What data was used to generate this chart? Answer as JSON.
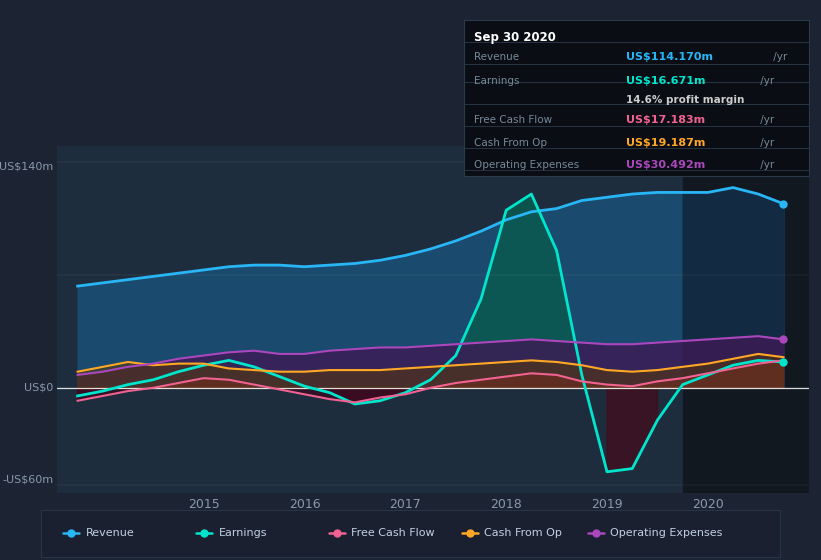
{
  "background_color": "#1c2333",
  "plot_area_color": "#1e2d3d",
  "dark_right_color": "#151e2a",
  "ylim": [
    -65,
    150
  ],
  "xlim_start": 2013.55,
  "xlim_end": 2021.0,
  "x_ticks": [
    2015,
    2016,
    2017,
    2018,
    2019,
    2020
  ],
  "y_label_top": "US$140m",
  "y_label_zero": "US$0",
  "y_label_bottom": "-US$60m",
  "y_zero": 0,
  "legend_items": [
    {
      "label": "Revenue",
      "color": "#29b6f6"
    },
    {
      "label": "Earnings",
      "color": "#00e5cc"
    },
    {
      "label": "Free Cash Flow",
      "color": "#f06292"
    },
    {
      "label": "Cash From Op",
      "color": "#ffa726"
    },
    {
      "label": "Operating Expenses",
      "color": "#ab47bc"
    }
  ],
  "info_box": {
    "title": "Sep 30 2020",
    "rows": [
      {
        "label": "Revenue",
        "value": "US$114.170m",
        "value_color": "#29b6f6",
        "suffix": " /yr"
      },
      {
        "label": "Earnings",
        "value": "US$16.671m",
        "value_color": "#00e5cc",
        "suffix": " /yr"
      },
      {
        "label": "",
        "value": "14.6% profit margin",
        "value_color": "#cccccc",
        "suffix": ""
      },
      {
        "label": "Free Cash Flow",
        "value": "US$17.183m",
        "value_color": "#f06292",
        "suffix": " /yr"
      },
      {
        "label": "Cash From Op",
        "value": "US$19.187m",
        "value_color": "#ffa726",
        "suffix": " /yr"
      },
      {
        "label": "Operating Expenses",
        "value": "US$30.492m",
        "value_color": "#ab47bc",
        "suffix": " /yr"
      }
    ]
  },
  "revenue_x": [
    2013.75,
    2014.0,
    2014.25,
    2014.5,
    2014.75,
    2015.0,
    2015.25,
    2015.5,
    2015.75,
    2016.0,
    2016.25,
    2016.5,
    2016.75,
    2017.0,
    2017.25,
    2017.5,
    2017.75,
    2018.0,
    2018.25,
    2018.5,
    2018.75,
    2019.0,
    2019.25,
    2019.5,
    2019.75,
    2020.0,
    2020.25,
    2020.5,
    2020.75
  ],
  "revenue_y": [
    63,
    65,
    67,
    69,
    71,
    73,
    75,
    76,
    76,
    75,
    76,
    77,
    79,
    82,
    86,
    91,
    97,
    104,
    109,
    111,
    116,
    118,
    120,
    121,
    121,
    121,
    124,
    120,
    114
  ],
  "earnings_x": [
    2013.75,
    2014.0,
    2014.25,
    2014.5,
    2014.75,
    2015.0,
    2015.25,
    2015.5,
    2015.75,
    2016.0,
    2016.25,
    2016.5,
    2016.75,
    2017.0,
    2017.25,
    2017.5,
    2017.75,
    2018.0,
    2018.25,
    2018.5,
    2018.75,
    2019.0,
    2019.25,
    2019.5,
    2019.75,
    2020.0,
    2020.25,
    2020.5,
    2020.75
  ],
  "earnings_y": [
    -5,
    -2,
    2,
    5,
    10,
    14,
    17,
    13,
    7,
    1,
    -3,
    -10,
    -8,
    -3,
    5,
    20,
    55,
    110,
    120,
    85,
    8,
    -52,
    -50,
    -20,
    2,
    8,
    14,
    17,
    16
  ],
  "fcf_x": [
    2013.75,
    2014.0,
    2014.25,
    2014.5,
    2014.75,
    2015.0,
    2015.25,
    2015.5,
    2015.75,
    2016.0,
    2016.25,
    2016.5,
    2016.75,
    2017.0,
    2017.25,
    2017.5,
    2017.75,
    2018.0,
    2018.25,
    2018.5,
    2018.75,
    2019.0,
    2019.25,
    2019.5,
    2019.75,
    2020.0,
    2020.25,
    2020.5,
    2020.75
  ],
  "fcf_y": [
    -8,
    -5,
    -2,
    0,
    3,
    6,
    5,
    2,
    -1,
    -4,
    -7,
    -9,
    -6,
    -4,
    0,
    3,
    5,
    7,
    9,
    8,
    4,
    2,
    1,
    4,
    6,
    9,
    12,
    15,
    17
  ],
  "cfo_x": [
    2013.75,
    2014.0,
    2014.25,
    2014.5,
    2014.75,
    2015.0,
    2015.25,
    2015.5,
    2015.75,
    2016.0,
    2016.25,
    2016.5,
    2016.75,
    2017.0,
    2017.25,
    2017.5,
    2017.75,
    2018.0,
    2018.25,
    2018.5,
    2018.75,
    2019.0,
    2019.25,
    2019.5,
    2019.75,
    2020.0,
    2020.25,
    2020.5,
    2020.75
  ],
  "cfo_y": [
    10,
    13,
    16,
    14,
    15,
    15,
    12,
    11,
    10,
    10,
    11,
    11,
    11,
    12,
    13,
    14,
    15,
    16,
    17,
    16,
    14,
    11,
    10,
    11,
    13,
    15,
    18,
    21,
    19
  ],
  "opex_x": [
    2013.75,
    2014.0,
    2014.25,
    2014.5,
    2014.75,
    2015.0,
    2015.25,
    2015.5,
    2015.75,
    2016.0,
    2016.25,
    2016.5,
    2016.75,
    2017.0,
    2017.25,
    2017.5,
    2017.75,
    2018.0,
    2018.25,
    2018.5,
    2018.75,
    2019.0,
    2019.25,
    2019.5,
    2019.75,
    2020.0,
    2020.25,
    2020.5,
    2020.75
  ],
  "opex_y": [
    8,
    10,
    13,
    15,
    18,
    20,
    22,
    23,
    21,
    21,
    23,
    24,
    25,
    25,
    26,
    27,
    28,
    29,
    30,
    29,
    28,
    27,
    27,
    28,
    29,
    30,
    31,
    32,
    30
  ]
}
